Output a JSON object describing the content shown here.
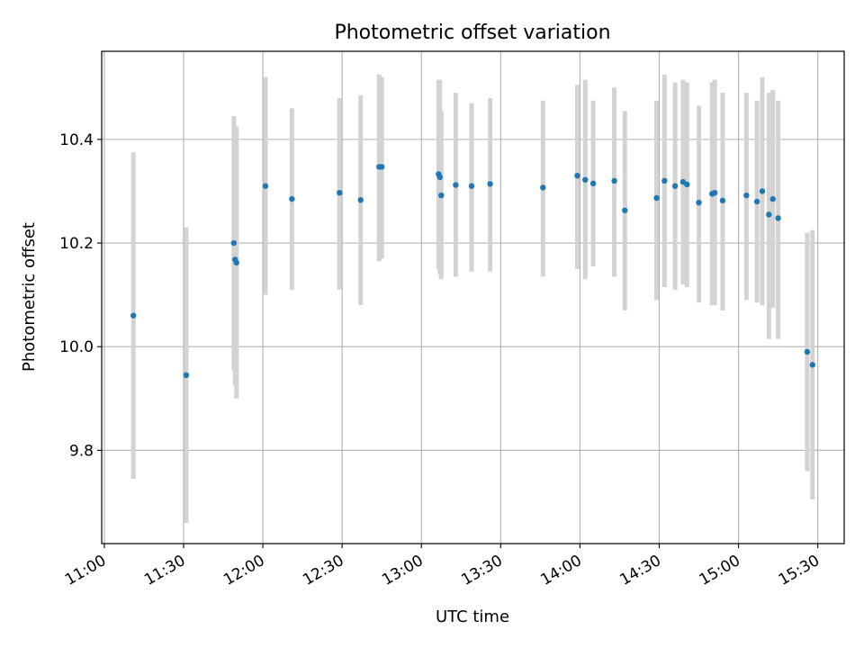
{
  "chart_data": {
    "type": "scatter",
    "title": "Photometric offset variation",
    "xlabel": "UTC time",
    "ylabel": "Photometric offset",
    "x_axis_kind": "time",
    "xlim": [
      "10:59",
      "15:40"
    ],
    "ylim": [
      9.62,
      10.57
    ],
    "xticks": [
      "11:00",
      "11:30",
      "12:00",
      "12:30",
      "13:00",
      "13:30",
      "14:00",
      "14:30",
      "15:00",
      "15:30"
    ],
    "yticks": [
      9.8,
      10.0,
      10.2,
      10.4
    ],
    "ytick_labels": [
      "9.8",
      "10.0",
      "10.2",
      "10.4"
    ],
    "grid": true,
    "marker_color": "#1f77b4",
    "errorbar_color": "#d3d3d3",
    "points": [
      {
        "t": "11:11",
        "y": 10.06,
        "lo": 9.745,
        "hi": 10.375
      },
      {
        "t": "11:31",
        "y": 9.945,
        "lo": 9.66,
        "hi": 10.23
      },
      {
        "t": "11:49",
        "y": 10.2,
        "lo": 9.955,
        "hi": 10.445
      },
      {
        "t": "11:49.5",
        "y": 10.168,
        "lo": 9.925,
        "hi": 10.41
      },
      {
        "t": "11:50",
        "y": 10.162,
        "lo": 9.9,
        "hi": 10.425
      },
      {
        "t": "12:01",
        "y": 10.31,
        "lo": 10.1,
        "hi": 10.52
      },
      {
        "t": "12:11",
        "y": 10.285,
        "lo": 10.11,
        "hi": 10.46
      },
      {
        "t": "12:29",
        "y": 10.297,
        "lo": 10.11,
        "hi": 10.48
      },
      {
        "t": "12:37",
        "y": 10.283,
        "lo": 10.08,
        "hi": 10.485
      },
      {
        "t": "12:44",
        "y": 10.347,
        "lo": 10.165,
        "hi": 10.525
      },
      {
        "t": "12:45",
        "y": 10.347,
        "lo": 10.17,
        "hi": 10.52
      },
      {
        "t": "13:06.5",
        "y": 10.333,
        "lo": 10.15,
        "hi": 10.515
      },
      {
        "t": "13:07",
        "y": 10.327,
        "lo": 10.14,
        "hi": 10.515
      },
      {
        "t": "13:07.5",
        "y": 10.292,
        "lo": 10.13,
        "hi": 10.455
      },
      {
        "t": "13:13",
        "y": 10.312,
        "lo": 10.135,
        "hi": 10.49
      },
      {
        "t": "13:19",
        "y": 10.31,
        "lo": 10.145,
        "hi": 10.47
      },
      {
        "t": "13:26",
        "y": 10.314,
        "lo": 10.145,
        "hi": 10.48
      },
      {
        "t": "13:46",
        "y": 10.307,
        "lo": 10.135,
        "hi": 10.475
      },
      {
        "t": "13:59",
        "y": 10.33,
        "lo": 10.15,
        "hi": 10.505
      },
      {
        "t": "14:02",
        "y": 10.322,
        "lo": 10.13,
        "hi": 10.515
      },
      {
        "t": "14:05",
        "y": 10.315,
        "lo": 10.155,
        "hi": 10.475
      },
      {
        "t": "14:13",
        "y": 10.32,
        "lo": 10.135,
        "hi": 10.5
      },
      {
        "t": "14:17",
        "y": 10.263,
        "lo": 10.07,
        "hi": 10.455
      },
      {
        "t": "14:29",
        "y": 10.287,
        "lo": 10.09,
        "hi": 10.475
      },
      {
        "t": "14:32",
        "y": 10.32,
        "lo": 10.115,
        "hi": 10.525
      },
      {
        "t": "14:36",
        "y": 10.31,
        "lo": 10.11,
        "hi": 10.51
      },
      {
        "t": "14:39",
        "y": 10.318,
        "lo": 10.12,
        "hi": 10.515
      },
      {
        "t": "14:40.5",
        "y": 10.313,
        "lo": 10.115,
        "hi": 10.51
      },
      {
        "t": "14:45",
        "y": 10.278,
        "lo": 10.085,
        "hi": 10.465
      },
      {
        "t": "14:50",
        "y": 10.295,
        "lo": 10.08,
        "hi": 10.51
      },
      {
        "t": "14:51",
        "y": 10.297,
        "lo": 10.08,
        "hi": 10.515
      },
      {
        "t": "14:54",
        "y": 10.282,
        "lo": 10.07,
        "hi": 10.49
      },
      {
        "t": "15:03",
        "y": 10.292,
        "lo": 10.09,
        "hi": 10.49
      },
      {
        "t": "15:07",
        "y": 10.28,
        "lo": 10.085,
        "hi": 10.475
      },
      {
        "t": "15:09",
        "y": 10.3,
        "lo": 10.08,
        "hi": 10.52
      },
      {
        "t": "15:11.5",
        "y": 10.255,
        "lo": 10.015,
        "hi": 10.49
      },
      {
        "t": "15:13",
        "y": 10.285,
        "lo": 10.075,
        "hi": 10.495
      },
      {
        "t": "15:15",
        "y": 10.248,
        "lo": 10.015,
        "hi": 10.475
      },
      {
        "t": "15:26",
        "y": 9.99,
        "lo": 9.76,
        "hi": 10.22
      },
      {
        "t": "15:28",
        "y": 9.965,
        "lo": 9.705,
        "hi": 10.225
      }
    ]
  }
}
